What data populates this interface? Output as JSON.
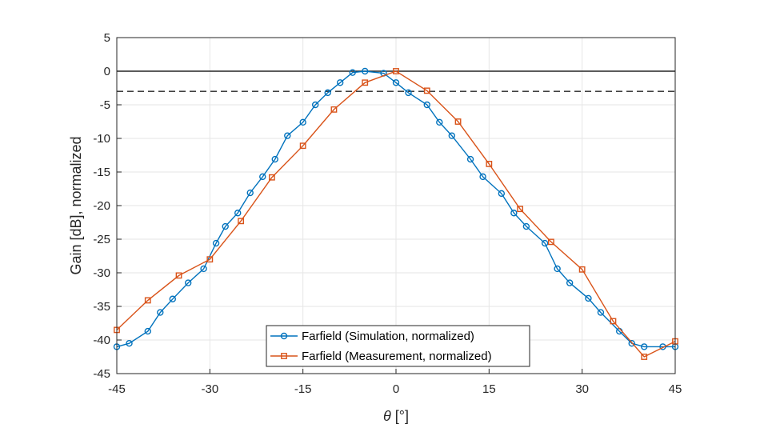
{
  "chart_data": {
    "type": "line",
    "xlabel_symbol": "θ",
    "xlabel_unit": "[°]",
    "ylabel": "Gain [dB], normalized",
    "xlim": [
      -45,
      45
    ],
    "ylim": [
      -45,
      5
    ],
    "xticks": [
      "-45",
      "-30",
      "-15",
      "0",
      "15",
      "30",
      "45"
    ],
    "yticks": [
      "5",
      "0",
      "-5",
      "-10",
      "-15",
      "-20",
      "-25",
      "-30",
      "-35",
      "-40",
      "-45"
    ],
    "grid": true,
    "legend_location": "bottom-center",
    "reference_lines": [
      {
        "y": 0,
        "style": "solid"
      },
      {
        "y": -3,
        "style": "dashed"
      }
    ],
    "series": [
      {
        "name": "Farfield (Simulation, normalized)",
        "color": "#0072BD",
        "marker": "circle",
        "x": [
          -45,
          -43,
          -40,
          -38,
          -36,
          -33.5,
          -31,
          -29,
          -27.5,
          -25.5,
          -23.5,
          -21.5,
          -19.5,
          -17.5,
          -15,
          -13,
          -11,
          -9,
          -7,
          -5,
          -2,
          0,
          2,
          5,
          7,
          9,
          12,
          14,
          17,
          19,
          21,
          24,
          26,
          28,
          31,
          33,
          36,
          38,
          40,
          43,
          45
        ],
        "y": [
          -41,
          -40.5,
          -38.7,
          -35.9,
          -33.9,
          -31.5,
          -29.4,
          -25.6,
          -23.1,
          -21.1,
          -18.1,
          -15.7,
          -13.1,
          -9.6,
          -7.6,
          -5,
          -3.2,
          -1.7,
          -0.2,
          0,
          -0.3,
          -1.7,
          -3.2,
          -5,
          -7.6,
          -9.6,
          -13.1,
          -15.7,
          -18.2,
          -21.1,
          -23.1,
          -25.6,
          -29.4,
          -31.5,
          -33.8,
          -35.9,
          -38.7,
          -40.5,
          -41,
          -41,
          -41
        ]
      },
      {
        "name": "Farfield (Measurement, normalized)",
        "color": "#D95319",
        "marker": "square",
        "x": [
          -45,
          -40,
          -35,
          -30,
          -25,
          -20,
          -15,
          -10,
          -5,
          0,
          5,
          10,
          15,
          20,
          25,
          30,
          35,
          40,
          45
        ],
        "y": [
          -38.5,
          -34.1,
          -30.4,
          -28,
          -22.3,
          -15.8,
          -11.1,
          -5.7,
          -1.7,
          0,
          -2.9,
          -7.5,
          -13.8,
          -20.5,
          -25.4,
          -29.5,
          -37.2,
          -42.5,
          -40.2
        ]
      }
    ]
  }
}
